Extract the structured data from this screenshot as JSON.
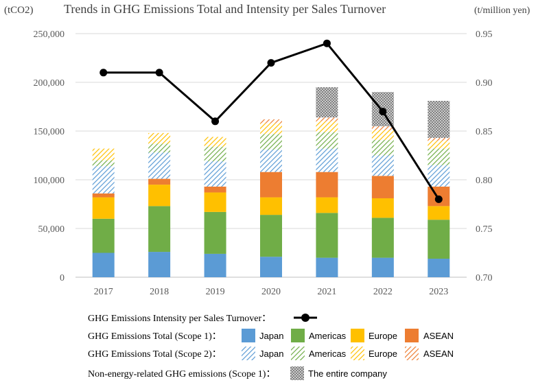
{
  "chart_data": {
    "type": "bar",
    "title": "Trends in GHG Emissions Total and Intensity per Sales Turnover",
    "y_unit_left": "(tCO2)",
    "y_unit_right": "(t/million yen)",
    "categories": [
      "2017",
      "2018",
      "2019",
      "2020",
      "2021",
      "2022",
      "2023"
    ],
    "ylim_left": [
      0,
      250000
    ],
    "yticks_left": [
      "0",
      "50,000",
      "100,000",
      "150,000",
      "200,000",
      "250,000"
    ],
    "ylim_right": [
      0.7,
      0.95
    ],
    "yticks_right": [
      "0.70",
      "0.75",
      "0.80",
      "0.85",
      "0.90",
      "0.95"
    ],
    "grid": true,
    "colors": {
      "japan": "#5b9bd5",
      "americas": "#70ad47",
      "europe": "#ffc000",
      "asean": "#ed7d31",
      "entire": "#7f7f7f",
      "line": "#000000"
    },
    "series": [
      {
        "group": "scope1",
        "region": "japan",
        "values": [
          25000,
          26000,
          24000,
          21000,
          20000,
          20000,
          19000
        ]
      },
      {
        "group": "scope1",
        "region": "americas",
        "values": [
          35000,
          47000,
          43000,
          43000,
          46000,
          41000,
          40000
        ]
      },
      {
        "group": "scope1",
        "region": "europe",
        "values": [
          22000,
          22000,
          20000,
          18000,
          16000,
          20000,
          14000
        ]
      },
      {
        "group": "scope1",
        "region": "asean",
        "values": [
          4000,
          6000,
          6000,
          26000,
          26000,
          23000,
          20000
        ]
      },
      {
        "group": "scope2",
        "region": "japan",
        "values": [
          28000,
          27000,
          26000,
          23000,
          24000,
          21000,
          22000
        ]
      },
      {
        "group": "scope2",
        "region": "americas",
        "values": [
          6000,
          9000,
          15000,
          16000,
          17000,
          16000,
          17000
        ]
      },
      {
        "group": "scope2",
        "region": "europe",
        "values": [
          12000,
          11000,
          10000,
          11000,
          11000,
          10000,
          8000
        ]
      },
      {
        "group": "scope2",
        "region": "asean",
        "values": [
          0,
          0,
          0,
          4000,
          4000,
          4000,
          3000
        ]
      },
      {
        "group": "non_energy",
        "region": "entire",
        "values": [
          0,
          0,
          0,
          0,
          31000,
          35000,
          38000
        ]
      }
    ],
    "line_series": {
      "axis": "right",
      "values": [
        0.91,
        0.91,
        0.86,
        0.92,
        0.94,
        0.87,
        0.78
      ]
    },
    "legend": {
      "placement": "bottom",
      "rows": [
        {
          "label": "GHG Emissions Intensity per Sales Turnover：",
          "items": [
            {
              "kind": "line",
              "text": ""
            }
          ]
        },
        {
          "label": "GHG Emissions Total (Scope 1)：",
          "items": [
            {
              "kind": "solid",
              "region": "japan",
              "text": "Japan"
            },
            {
              "kind": "solid",
              "region": "americas",
              "text": "Americas"
            },
            {
              "kind": "solid",
              "region": "europe",
              "text": "Europe"
            },
            {
              "kind": "solid",
              "region": "asean",
              "text": "ASEAN"
            }
          ]
        },
        {
          "label": "GHG Emissions Total (Scope 2)：",
          "items": [
            {
              "kind": "hatch",
              "region": "japan",
              "text": "Japan"
            },
            {
              "kind": "hatch",
              "region": "americas",
              "text": "Americas"
            },
            {
              "kind": "hatch",
              "region": "europe",
              "text": "Europe"
            },
            {
              "kind": "hatch",
              "region": "asean",
              "text": "ASEAN"
            }
          ]
        },
        {
          "label": "Non-energy-related GHG emissions (Scope 1)：",
          "items": [
            {
              "kind": "cross",
              "region": "entire",
              "text": "The entire company"
            }
          ]
        }
      ]
    }
  }
}
